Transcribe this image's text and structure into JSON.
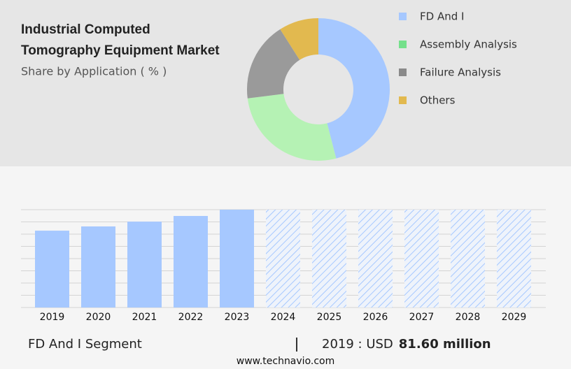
{
  "chart_data": [
    {
      "type": "donut",
      "title": "Industrial Computed Tomography Equipment Market",
      "subtitle": "Share by Application ( % )",
      "categories": [
        "FD And I",
        "Assembly Analysis",
        "Failure Analysis",
        "Others"
      ],
      "values": [
        46,
        27,
        18,
        9
      ],
      "colors": [
        "#a6c8ff",
        "#b5f2b4",
        "#9a9a9a",
        "#e2b94f"
      ],
      "legend_colors": [
        "#a6c8ff",
        "#74e08b",
        "#8a8a8a",
        "#e2b94f"
      ]
    },
    {
      "type": "bar",
      "categories": [
        "2019",
        "2020",
        "2021",
        "2022",
        "2023",
        "2024",
        "2025",
        "2026",
        "2027",
        "2028",
        "2029"
      ],
      "values": [
        81.6,
        86.1,
        91.2,
        97.2,
        103.9,
        null,
        null,
        null,
        null,
        null,
        null
      ],
      "value_labels": [
        "81.60 million",
        null,
        null,
        null,
        null,
        null,
        null,
        null,
        null,
        null,
        null
      ],
      "color": "#a6c8ff",
      "forecast_color": "#a6c8ff",
      "ylim": [
        0,
        103.9
      ],
      "segment_label": "FD And I Segment",
      "highlight_text": "2019 : USD"
    }
  ],
  "source": "www.technavio.com"
}
